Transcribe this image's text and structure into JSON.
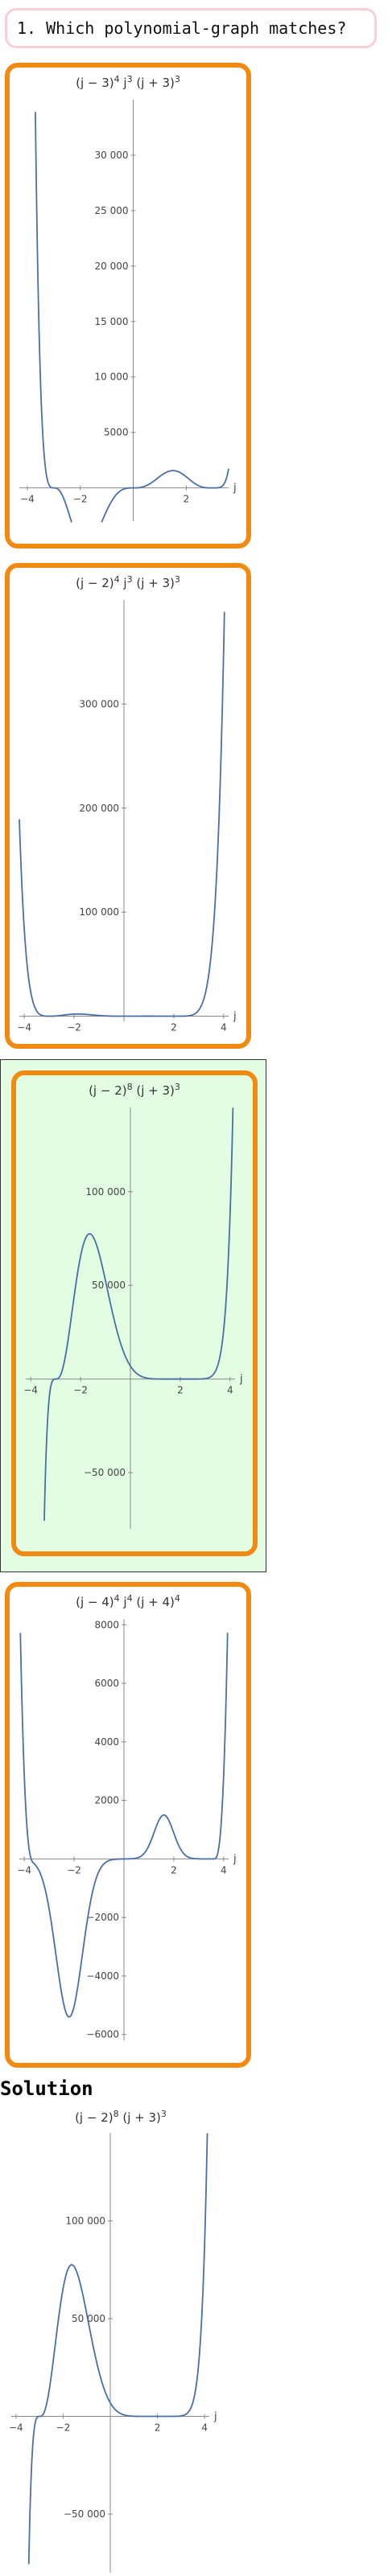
{
  "question": {
    "label": "1. Which polynomial-graph matches?"
  },
  "solution": {
    "heading": "Solution"
  },
  "colors": {
    "card_border": "#f28a12",
    "curve": "#4a6fa5",
    "selected_background": "#e2fde2",
    "question_border": "#f9cfd6"
  },
  "options": [
    {
      "title_html": "(j − 3)<tspan dy='-6' font-size='11'>4</tspan><tspan dy='6'> j</tspan><tspan dy='-6' font-size='11'>3</tspan><tspan dy='6'> (j + 3)</tspan><tspan dy='-6' font-size='11'>3</tspan>",
      "selected": false,
      "chart_data": {
        "type": "line",
        "function": {
          "a": 3,
          "p": 4,
          "q": 3,
          "b": -3,
          "r": 3
        },
        "xlim": [
          -4.3,
          3.6
        ],
        "ylim": [
          -3000,
          35000
        ],
        "xticks": [
          -4,
          -2,
          2
        ],
        "yticks": [
          5000,
          10000,
          15000,
          20000,
          25000,
          30000
        ],
        "xtick_labels": [
          "−4",
          "−2",
          "2"
        ],
        "ytick_labels": [
          "5000",
          "10 000",
          "15 000",
          "20 000",
          "25 000",
          "30 000"
        ],
        "xlabel": "j"
      }
    },
    {
      "title_html": "(j − 2)<tspan dy='-6' font-size='11'>4</tspan><tspan dy='6'> j</tspan><tspan dy='-6' font-size='11'>3</tspan><tspan dy='6'> (j + 3)</tspan><tspan dy='-6' font-size='11'>3</tspan>",
      "selected": false,
      "chart_data": {
        "type": "line",
        "function": {
          "a": 2,
          "p": 4,
          "q": 3,
          "b": -3,
          "r": 3,
          "abs": true
        },
        "xlim": [
          -4.2,
          4.2
        ],
        "ylim": [
          -5000,
          400000
        ],
        "xticks": [
          -4,
          -2,
          2,
          4
        ],
        "yticks": [
          100000,
          200000,
          300000
        ],
        "xtick_labels": [
          "−4",
          "−2",
          "2",
          "4"
        ],
        "ytick_labels": [
          "100 000",
          "200 000",
          "300 000"
        ],
        "xlabel": "j"
      }
    },
    {
      "title_html": "(j − 2)<tspan dy='-6' font-size='11'>8</tspan><tspan dy='6'> (j + 3)</tspan><tspan dy='-6' font-size='11'>3</tspan>",
      "selected": true,
      "chart_data": {
        "type": "line",
        "function": {
          "a": 2,
          "p": 8,
          "q": 0,
          "b": -3,
          "r": 3
        },
        "xlim": [
          -4.2,
          4.2
        ],
        "ylim": [
          -80000,
          145000
        ],
        "xticks": [
          -4,
          -2,
          2,
          4
        ],
        "yticks": [
          -50000,
          50000,
          100000
        ],
        "xtick_labels": [
          "−4",
          "−2",
          "2",
          "4"
        ],
        "ytick_labels": [
          "−50 000",
          "50 000",
          "100 000"
        ],
        "xlabel": "j"
      }
    },
    {
      "title_html": "(j − 4)<tspan dy='-6' font-size='11'>4</tspan><tspan dy='6'> j</tspan><tspan dy='-6' font-size='11'>4</tspan><tspan dy='6'> (j + 4)</tspan><tspan dy='-6' font-size='11'>4</tspan>",
      "selected": false,
      "chart_data": {
        "type": "line",
        "note_curve": "shape as shown",
        "function": {
          "custom": "option4"
        },
        "xlim": [
          -4.2,
          4.2
        ],
        "ylim": [
          -6200,
          8200
        ],
        "xticks": [
          -4,
          -2,
          2,
          4
        ],
        "yticks": [
          -6000,
          -4000,
          -2000,
          2000,
          4000,
          6000,
          8000
        ],
        "xtick_labels": [
          "−4",
          "−2",
          "2",
          "4"
        ],
        "ytick_labels": [
          "−6000",
          "−4000",
          "−2000",
          "2000",
          "4000",
          "6000",
          "8000"
        ],
        "xlabel": "j"
      }
    }
  ],
  "solution_plot": {
    "title_html": "(j − 2)<tspan dy='-6' font-size='11'>8</tspan><tspan dy='6'> (j + 3)</tspan><tspan dy='-6' font-size='11'>3</tspan>",
    "chart_data": {
      "type": "line",
      "function": {
        "a": 2,
        "p": 8,
        "q": 0,
        "b": -3,
        "r": 3
      },
      "xlim": [
        -4.2,
        4.2
      ],
      "ylim": [
        -80000,
        145000
      ],
      "xticks": [
        -4,
        -2,
        2,
        4
      ],
      "yticks": [
        -50000,
        50000,
        100000
      ],
      "xtick_labels": [
        "−4",
        "−2",
        "2",
        "4"
      ],
      "ytick_labels": [
        "−50 000",
        "50 000",
        "100 000"
      ],
      "xlabel": "j"
    }
  }
}
